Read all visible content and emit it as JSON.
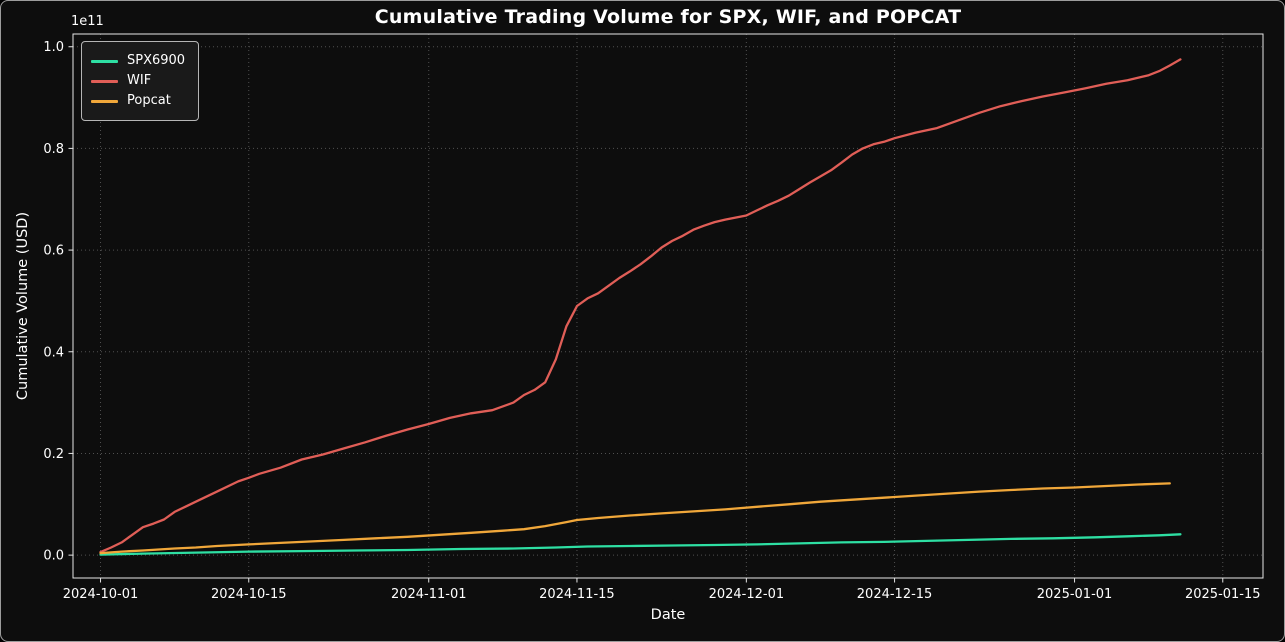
{
  "figure": {
    "background": "#0d0d0d",
    "text_color": "#ffffff",
    "grid_color": "#505050",
    "spine_color": "#e6e6e6",
    "border_color": "#9c9c9c"
  },
  "chart_data": {
    "type": "line",
    "title": "Cumulative Trading Volume for SPX, WIF, and POPCAT",
    "xlabel": "Date",
    "ylabel": "Cumulative Volume (USD)",
    "y_offset_label": "1e11",
    "y_unit": "1e11 USD",
    "grid": true,
    "grid_style": "dotted",
    "legend_position": "upper left",
    "x_ticks": [
      "2024-10-01",
      "2024-10-15",
      "2024-11-01",
      "2024-11-15",
      "2024-12-01",
      "2024-12-15",
      "2025-01-01",
      "2025-01-15"
    ],
    "y_ticks": [
      0.0,
      0.2,
      0.4,
      0.6,
      0.8,
      1.0
    ],
    "xlim_days": [
      -2.6,
      109.8
    ],
    "ylim": [
      -0.045,
      1.025
    ],
    "series": [
      {
        "name": "SPX6900",
        "color": "#2edfa3",
        "points": [
          [
            "2024-10-01",
            0.001
          ],
          [
            "2024-10-05",
            0.003
          ],
          [
            "2024-10-10",
            0.005
          ],
          [
            "2024-10-15",
            0.007
          ],
          [
            "2024-10-20",
            0.008
          ],
          [
            "2024-10-25",
            0.009
          ],
          [
            "2024-10-30",
            0.01
          ],
          [
            "2024-11-04",
            0.012
          ],
          [
            "2024-11-09",
            0.013
          ],
          [
            "2024-11-13",
            0.015
          ],
          [
            "2024-11-16",
            0.017
          ],
          [
            "2024-11-20",
            0.018
          ],
          [
            "2024-11-24",
            0.019
          ],
          [
            "2024-11-28",
            0.02
          ],
          [
            "2024-12-02",
            0.021
          ],
          [
            "2024-12-06",
            0.023
          ],
          [
            "2024-12-10",
            0.025
          ],
          [
            "2024-12-14",
            0.026
          ],
          [
            "2024-12-18",
            0.028
          ],
          [
            "2024-12-22",
            0.03
          ],
          [
            "2024-12-26",
            0.032
          ],
          [
            "2024-12-30",
            0.033
          ],
          [
            "2025-01-03",
            0.035
          ],
          [
            "2025-01-06",
            0.037
          ],
          [
            "2025-01-09",
            0.039
          ],
          [
            "2025-01-11",
            0.041
          ]
        ]
      },
      {
        "name": "WIF",
        "color": "#e05e57",
        "points": [
          [
            "2024-10-01",
            0.006
          ],
          [
            "2024-10-02",
            0.015
          ],
          [
            "2024-10-03",
            0.025
          ],
          [
            "2024-10-04",
            0.04
          ],
          [
            "2024-10-05",
            0.055
          ],
          [
            "2024-10-06",
            0.062
          ],
          [
            "2024-10-07",
            0.07
          ],
          [
            "2024-10-08",
            0.085
          ],
          [
            "2024-10-09",
            0.095
          ],
          [
            "2024-10-10",
            0.105
          ],
          [
            "2024-10-12",
            0.125
          ],
          [
            "2024-10-14",
            0.145
          ],
          [
            "2024-10-15",
            0.152
          ],
          [
            "2024-10-16",
            0.16
          ],
          [
            "2024-10-18",
            0.172
          ],
          [
            "2024-10-20",
            0.188
          ],
          [
            "2024-10-22",
            0.198
          ],
          [
            "2024-10-24",
            0.21
          ],
          [
            "2024-10-26",
            0.222
          ],
          [
            "2024-10-28",
            0.235
          ],
          [
            "2024-10-30",
            0.247
          ],
          [
            "2024-11-01",
            0.258
          ],
          [
            "2024-11-03",
            0.27
          ],
          [
            "2024-11-05",
            0.279
          ],
          [
            "2024-11-07",
            0.285
          ],
          [
            "2024-11-09",
            0.3
          ],
          [
            "2024-11-10",
            0.315
          ],
          [
            "2024-11-11",
            0.325
          ],
          [
            "2024-11-12",
            0.34
          ],
          [
            "2024-11-13",
            0.385
          ],
          [
            "2024-11-14",
            0.45
          ],
          [
            "2024-11-15",
            0.49
          ],
          [
            "2024-11-16",
            0.505
          ],
          [
            "2024-11-17",
            0.515
          ],
          [
            "2024-11-18",
            0.53
          ],
          [
            "2024-11-19",
            0.545
          ],
          [
            "2024-11-20",
            0.558
          ],
          [
            "2024-11-21",
            0.572
          ],
          [
            "2024-11-22",
            0.588
          ],
          [
            "2024-11-23",
            0.605
          ],
          [
            "2024-11-24",
            0.618
          ],
          [
            "2024-11-25",
            0.628
          ],
          [
            "2024-11-26",
            0.64
          ],
          [
            "2024-11-27",
            0.648
          ],
          [
            "2024-11-28",
            0.655
          ],
          [
            "2024-11-29",
            0.66
          ],
          [
            "2024-12-01",
            0.668
          ],
          [
            "2024-12-02",
            0.678
          ],
          [
            "2024-12-03",
            0.688
          ],
          [
            "2024-12-04",
            0.697
          ],
          [
            "2024-12-05",
            0.707
          ],
          [
            "2024-12-06",
            0.72
          ],
          [
            "2024-12-07",
            0.733
          ],
          [
            "2024-12-08",
            0.745
          ],
          [
            "2024-12-09",
            0.757
          ],
          [
            "2024-12-10",
            0.772
          ],
          [
            "2024-12-11",
            0.788
          ],
          [
            "2024-12-12",
            0.8
          ],
          [
            "2024-12-13",
            0.808
          ],
          [
            "2024-12-14",
            0.813
          ],
          [
            "2024-12-15",
            0.82
          ],
          [
            "2024-12-17",
            0.831
          ],
          [
            "2024-12-19",
            0.84
          ],
          [
            "2024-12-21",
            0.855
          ],
          [
            "2024-12-23",
            0.87
          ],
          [
            "2024-12-25",
            0.883
          ],
          [
            "2024-12-27",
            0.893
          ],
          [
            "2024-12-29",
            0.902
          ],
          [
            "2024-12-31",
            0.91
          ],
          [
            "2025-01-02",
            0.918
          ],
          [
            "2025-01-04",
            0.927
          ],
          [
            "2025-01-06",
            0.934
          ],
          [
            "2025-01-08",
            0.944
          ],
          [
            "2025-01-09",
            0.952
          ],
          [
            "2025-01-10",
            0.963
          ],
          [
            "2025-01-11",
            0.975
          ]
        ]
      },
      {
        "name": "Popcat",
        "color": "#f0a73a",
        "points": [
          [
            "2024-10-01",
            0.004
          ],
          [
            "2024-10-03",
            0.007
          ],
          [
            "2024-10-05",
            0.009
          ],
          [
            "2024-10-08",
            0.013
          ],
          [
            "2024-10-10",
            0.015
          ],
          [
            "2024-10-12",
            0.018
          ],
          [
            "2024-10-15",
            0.021
          ],
          [
            "2024-10-18",
            0.024
          ],
          [
            "2024-10-21",
            0.027
          ],
          [
            "2024-10-24",
            0.03
          ],
          [
            "2024-10-27",
            0.033
          ],
          [
            "2024-10-30",
            0.036
          ],
          [
            "2024-11-02",
            0.04
          ],
          [
            "2024-11-05",
            0.044
          ],
          [
            "2024-11-08",
            0.048
          ],
          [
            "2024-11-10",
            0.051
          ],
          [
            "2024-11-12",
            0.057
          ],
          [
            "2024-11-14",
            0.065
          ],
          [
            "2024-11-15",
            0.069
          ],
          [
            "2024-11-17",
            0.073
          ],
          [
            "2024-11-20",
            0.078
          ],
          [
            "2024-11-23",
            0.082
          ],
          [
            "2024-11-26",
            0.086
          ],
          [
            "2024-11-29",
            0.09
          ],
          [
            "2024-12-02",
            0.095
          ],
          [
            "2024-12-05",
            0.1
          ],
          [
            "2024-12-08",
            0.105
          ],
          [
            "2024-12-11",
            0.109
          ],
          [
            "2024-12-14",
            0.113
          ],
          [
            "2024-12-17",
            0.117
          ],
          [
            "2024-12-20",
            0.121
          ],
          [
            "2024-12-23",
            0.125
          ],
          [
            "2024-12-26",
            0.128
          ],
          [
            "2024-12-29",
            0.131
          ],
          [
            "2025-01-01",
            0.133
          ],
          [
            "2025-01-04",
            0.136
          ],
          [
            "2025-01-07",
            0.139
          ],
          [
            "2025-01-10",
            0.141
          ]
        ]
      }
    ],
    "legend_labels": [
      "SPX6900",
      "WIF",
      "Popcat"
    ]
  }
}
